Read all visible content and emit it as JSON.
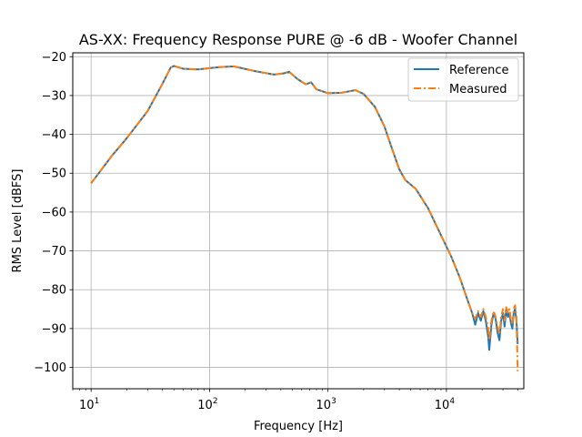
{
  "chart_data": {
    "type": "line",
    "title": "AS-XX: Frequency Response PURE @ -6 dB - Woofer Channel",
    "xlabel": "Frequency [Hz]",
    "ylabel": "RMS Level [dBFS]",
    "x_scale": "log",
    "xlim": [
      7,
      45000
    ],
    "ylim": [
      -105.5,
      -19
    ],
    "x_ticks": [
      10,
      100,
      1000,
      10000
    ],
    "x_tick_labels": [
      {
        "base": "10",
        "exp": "1"
      },
      {
        "base": "10",
        "exp": "2"
      },
      {
        "base": "10",
        "exp": "3"
      },
      {
        "base": "10",
        "exp": "4"
      }
    ],
    "y_ticks": [
      -20,
      -30,
      -40,
      -50,
      -60,
      -70,
      -80,
      -90,
      -100
    ],
    "y_tick_labels": [
      "−20",
      "−30",
      "−40",
      "−50",
      "−60",
      "−70",
      "−80",
      "−90",
      "−100"
    ],
    "grid": true,
    "legend_position": "top-right",
    "series": [
      {
        "name": "Reference",
        "color": "#1f77b4",
        "style": "solid",
        "points": [
          [
            10,
            -52.6
          ],
          [
            15,
            -45.5
          ],
          [
            20,
            -41
          ],
          [
            30,
            -34
          ],
          [
            40,
            -27
          ],
          [
            47,
            -22.8
          ],
          [
            50,
            -22.4
          ],
          [
            60,
            -23.1
          ],
          [
            80,
            -23.3
          ],
          [
            120,
            -22.7
          ],
          [
            160,
            -22.5
          ],
          [
            250,
            -23.8
          ],
          [
            350,
            -24.6
          ],
          [
            420,
            -24.3
          ],
          [
            470,
            -23.9
          ],
          [
            550,
            -25.7
          ],
          [
            650,
            -27.1
          ],
          [
            720,
            -26.6
          ],
          [
            800,
            -28.4
          ],
          [
            1000,
            -29.4
          ],
          [
            1300,
            -29.3
          ],
          [
            1700,
            -28.6
          ],
          [
            2000,
            -29.6
          ],
          [
            2500,
            -33
          ],
          [
            3000,
            -38
          ],
          [
            3500,
            -44
          ],
          [
            4000,
            -49
          ],
          [
            4500,
            -51.8
          ],
          [
            5500,
            -54
          ],
          [
            7000,
            -59
          ],
          [
            9000,
            -66
          ],
          [
            11000,
            -71.5
          ],
          [
            13000,
            -77
          ],
          [
            15000,
            -82.5
          ],
          [
            16500,
            -86
          ],
          [
            17500,
            -89
          ],
          [
            18500,
            -86
          ],
          [
            19500,
            -88
          ],
          [
            20500,
            -85.5
          ],
          [
            21500,
            -88
          ],
          [
            22500,
            -92
          ],
          [
            23000,
            -95.5
          ],
          [
            24000,
            -89
          ],
          [
            25000,
            -86
          ],
          [
            26000,
            -87.5
          ],
          [
            27000,
            -91
          ],
          [
            28000,
            -93
          ],
          [
            29000,
            -88
          ],
          [
            30000,
            -86
          ],
          [
            31000,
            -89.5
          ],
          [
            32000,
            -85
          ],
          [
            33000,
            -87
          ],
          [
            34000,
            -86
          ],
          [
            35000,
            -88.5
          ],
          [
            36000,
            -90
          ],
          [
            37000,
            -86
          ],
          [
            38000,
            -85
          ],
          [
            39000,
            -88
          ],
          [
            40000,
            -94
          ]
        ]
      },
      {
        "name": "Measured",
        "color": "#ff7f0e",
        "style": "dashdot",
        "points": [
          [
            10,
            -52.6
          ],
          [
            15,
            -45.5
          ],
          [
            20,
            -41
          ],
          [
            30,
            -34
          ],
          [
            40,
            -27
          ],
          [
            47,
            -22.8
          ],
          [
            50,
            -22.4
          ],
          [
            60,
            -23.1
          ],
          [
            80,
            -23.3
          ],
          [
            120,
            -22.7
          ],
          [
            160,
            -22.5
          ],
          [
            250,
            -23.8
          ],
          [
            350,
            -24.6
          ],
          [
            420,
            -24.3
          ],
          [
            470,
            -23.9
          ],
          [
            550,
            -25.7
          ],
          [
            650,
            -27.1
          ],
          [
            720,
            -26.6
          ],
          [
            800,
            -28.4
          ],
          [
            1000,
            -29.4
          ],
          [
            1300,
            -29.3
          ],
          [
            1700,
            -28.6
          ],
          [
            2000,
            -29.6
          ],
          [
            2500,
            -33
          ],
          [
            3000,
            -38
          ],
          [
            3500,
            -44
          ],
          [
            4000,
            -49
          ],
          [
            4500,
            -51.8
          ],
          [
            5500,
            -54
          ],
          [
            7000,
            -59
          ],
          [
            9000,
            -66
          ],
          [
            11000,
            -71.5
          ],
          [
            13000,
            -77
          ],
          [
            15000,
            -82.5
          ],
          [
            16500,
            -86
          ],
          [
            17500,
            -87.5
          ],
          [
            18500,
            -85.5
          ],
          [
            19500,
            -87
          ],
          [
            20500,
            -85
          ],
          [
            21500,
            -87
          ],
          [
            22500,
            -90
          ],
          [
            23000,
            -93
          ],
          [
            24000,
            -88
          ],
          [
            25000,
            -85.5
          ],
          [
            26000,
            -87
          ],
          [
            27000,
            -89.5
          ],
          [
            28000,
            -91.5
          ],
          [
            29000,
            -87
          ],
          [
            30000,
            -85
          ],
          [
            31000,
            -88
          ],
          [
            32000,
            -84.5
          ],
          [
            33000,
            -86
          ],
          [
            34000,
            -85
          ],
          [
            35000,
            -87.5
          ],
          [
            36000,
            -89
          ],
          [
            37000,
            -85
          ],
          [
            38000,
            -84
          ],
          [
            39000,
            -87
          ],
          [
            40000,
            -101
          ]
        ]
      }
    ]
  }
}
